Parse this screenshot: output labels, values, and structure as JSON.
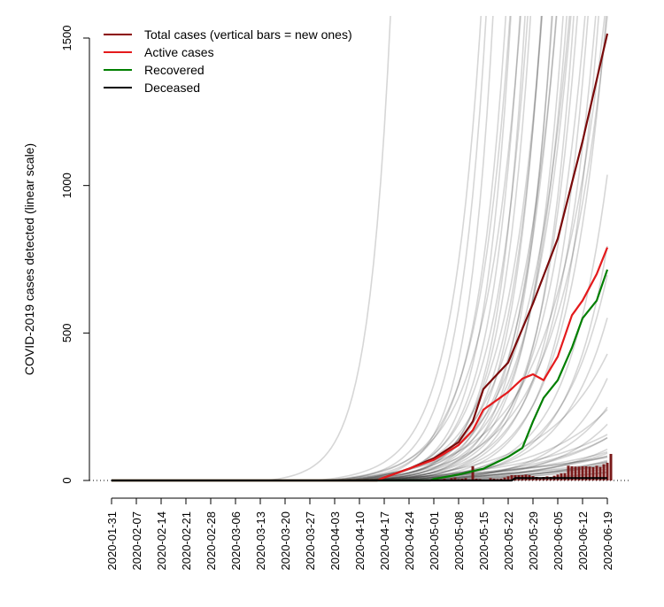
{
  "chart_data": {
    "type": "line",
    "title": "",
    "xlabel": "",
    "ylabel": "COVID-2019 cases detected (linear scale)",
    "ylim": [
      0,
      1575
    ],
    "xlim_dates": [
      "2020-01-31",
      "2020-06-19"
    ],
    "y_ticks": [
      0,
      500,
      1000,
      1500
    ],
    "y_tick_labels": [
      "0",
      "500",
      "1000",
      "1500"
    ],
    "x_tick_labels": [
      "2020-01-31",
      "2020-02-07",
      "2020-02-14",
      "2020-02-21",
      "2020-02-28",
      "2020-03-06",
      "2020-03-13",
      "2020-03-20",
      "2020-03-27",
      "2020-04-03",
      "2020-04-10",
      "2020-04-17",
      "2020-04-24",
      "2020-05-01",
      "2020-05-08",
      "2020-05-15",
      "2020-05-22",
      "2020-05-29",
      "2020-06-05",
      "2020-06-12",
      "2020-06-19"
    ],
    "legend": {
      "placement": "top-left",
      "entries": [
        {
          "label": "Total cases (vertical bars = new ones)",
          "color": "#8b0000"
        },
        {
          "label": "Active cases",
          "color": "#e41a1c"
        },
        {
          "label": "Recovered",
          "color": "#007f00"
        },
        {
          "label": "Deceased",
          "color": "#000000"
        }
      ]
    },
    "series": [
      {
        "name": "Total cases",
        "color": "#7a0a0a",
        "day": [
          0,
          75,
          77,
          84,
          91,
          98,
          102,
          105,
          112,
          119,
          126,
          133,
          140
        ],
        "values": [
          0,
          0,
          10,
          40,
          75,
          130,
          200,
          310,
          400,
          600,
          820,
          1150,
          1515
        ]
      },
      {
        "name": "Active cases",
        "color": "#e41a1c",
        "day": [
          0,
          75,
          77,
          84,
          91,
          98,
          102,
          105,
          112,
          116,
          119,
          122,
          126,
          130,
          133,
          137,
          140
        ],
        "values": [
          0,
          0,
          10,
          40,
          70,
          120,
          170,
          240,
          300,
          345,
          360,
          340,
          420,
          560,
          610,
          700,
          790
        ]
      },
      {
        "name": "Recovered",
        "color": "#007f00",
        "day": [
          0,
          90,
          91,
          98,
          105,
          112,
          116,
          119,
          122,
          126,
          130,
          133,
          137,
          140
        ],
        "values": [
          0,
          0,
          5,
          20,
          40,
          80,
          110,
          200,
          280,
          340,
          450,
          550,
          610,
          715
        ]
      },
      {
        "name": "Deceased",
        "color": "#000000",
        "day": [
          0,
          113,
          114,
          140
        ],
        "values": [
          0,
          0,
          8,
          8
        ]
      }
    ],
    "new_cases": {
      "start_day": 90,
      "values": [
        2,
        3,
        5,
        4,
        6,
        3,
        8,
        10,
        5,
        6,
        8,
        4,
        48,
        6,
        5,
        2,
        3,
        8,
        6,
        5,
        6,
        10,
        14,
        18,
        18,
        18,
        18,
        20,
        18,
        15,
        12,
        10,
        12,
        14,
        12,
        16,
        20,
        24,
        25,
        50,
        48,
        47,
        47,
        48,
        48,
        47,
        45,
        50,
        46,
        55,
        60,
        90
      ]
    },
    "comparison_series": {
      "color": "#000000",
      "params_onset_day_growth_rate": [
        [
          44,
          0.16
        ],
        [
          58,
          0.12
        ],
        [
          60,
          0.1
        ],
        [
          62,
          0.11
        ],
        [
          63,
          0.13
        ],
        [
          64,
          0.09
        ],
        [
          65,
          0.12
        ],
        [
          66,
          0.1
        ],
        [
          67,
          0.11
        ],
        [
          68,
          0.14
        ],
        [
          68,
          0.09
        ],
        [
          69,
          0.12
        ],
        [
          70,
          0.1
        ],
        [
          70,
          0.13
        ],
        [
          71,
          0.11
        ],
        [
          72,
          0.09
        ],
        [
          72,
          0.12
        ],
        [
          73,
          0.1
        ],
        [
          74,
          0.11
        ],
        [
          74,
          0.13
        ],
        [
          75,
          0.09
        ],
        [
          75,
          0.12
        ],
        [
          76,
          0.1
        ],
        [
          77,
          0.11
        ],
        [
          78,
          0.09
        ],
        [
          78,
          0.12
        ],
        [
          79,
          0.1
        ],
        [
          80,
          0.11
        ],
        [
          81,
          0.08
        ],
        [
          82,
          0.1
        ],
        [
          83,
          0.09
        ],
        [
          84,
          0.08
        ],
        [
          86,
          0.09
        ],
        [
          88,
          0.07
        ],
        [
          90,
          0.08
        ],
        [
          92,
          0.07
        ],
        [
          70,
          0.06
        ],
        [
          75,
          0.055
        ],
        [
          80,
          0.05
        ],
        [
          85,
          0.055
        ],
        [
          90,
          0.05
        ],
        [
          95,
          0.06
        ],
        [
          100,
          0.055
        ],
        [
          72,
          0.045
        ],
        [
          78,
          0.04
        ],
        [
          88,
          0.045
        ],
        [
          98,
          0.05
        ],
        [
          105,
          0.06
        ],
        [
          76,
          0.035
        ],
        [
          85,
          0.035
        ],
        [
          95,
          0.04
        ],
        [
          70,
          0.03
        ],
        [
          90,
          0.03
        ],
        [
          100,
          0.035
        ],
        [
          80,
          0.025
        ],
        [
          110,
          0.04
        ],
        [
          115,
          0.05
        ],
        [
          60,
          0.07
        ],
        [
          66,
          0.075
        ],
        [
          64,
          0.085
        ]
      ]
    }
  }
}
